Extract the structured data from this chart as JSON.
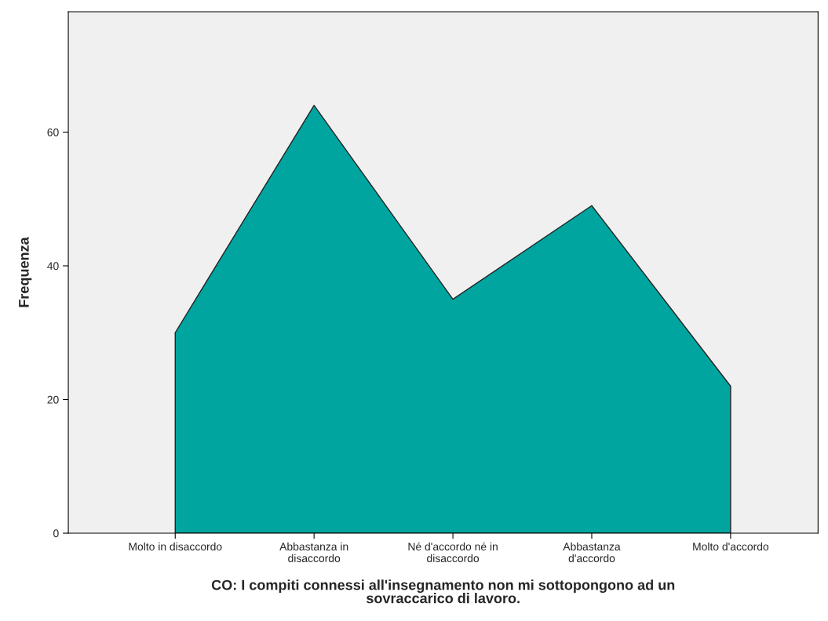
{
  "chart_data": {
    "type": "area",
    "xlabel": "CO: I compiti connessi all'insegnamento non mi sottopongono ad un\nsovraccarico di lavoro.",
    "ylabel": "Frequenza",
    "categories": [
      "Molto in disaccordo",
      "Abbastanza in\ndisaccordo",
      "Né d'accordo né in\ndisaccordo",
      "Abbastanza\nd'accordo",
      "Molto d'accordo"
    ],
    "series": [
      {
        "color": "#00a5a0",
        "values": [
          30,
          64,
          35,
          49,
          22
        ]
      }
    ],
    "ylim": [
      0,
      78
    ],
    "yticks": [
      0,
      20,
      40,
      60
    ],
    "grid": false,
    "legend": false
  }
}
